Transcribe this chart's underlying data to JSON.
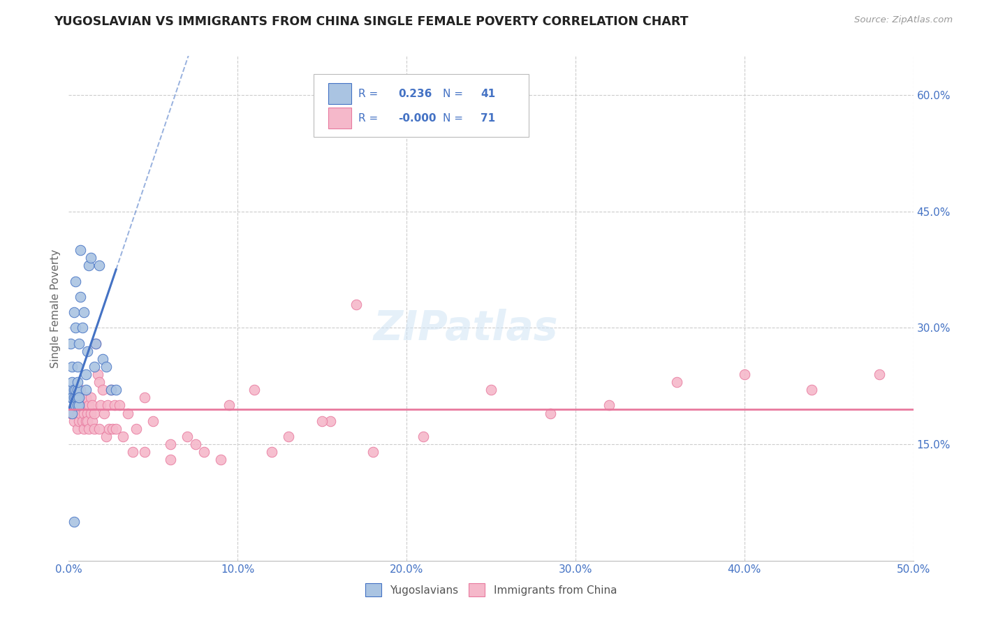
{
  "title": "YUGOSLAVIAN VS IMMIGRANTS FROM CHINA SINGLE FEMALE POVERTY CORRELATION CHART",
  "source": "Source: ZipAtlas.com",
  "ylabel": "Single Female Poverty",
  "xlim": [
    0.0,
    0.5
  ],
  "ylim": [
    0.0,
    0.65
  ],
  "xtick_vals": [
    0.0,
    0.1,
    0.2,
    0.3,
    0.4,
    0.5
  ],
  "xtick_labels": [
    "0.0%",
    "10.0%",
    "20.0%",
    "30.0%",
    "40.0%",
    "50.0%"
  ],
  "yticks_right": [
    0.15,
    0.3,
    0.45,
    0.6
  ],
  "ytick_labels_right": [
    "15.0%",
    "30.0%",
    "45.0%",
    "60.0%"
  ],
  "r_yugo": "0.236",
  "n_yugo": "41",
  "r_china": "-0.000",
  "n_china": "71",
  "legend_labels": [
    "Yugoslavians",
    "Immigrants from China"
  ],
  "color_yugo": "#aac4e2",
  "color_china": "#f5b8ca",
  "edge_color_yugo": "#4472C4",
  "edge_color_china": "#e87a9f",
  "line_color_yugo": "#4472C4",
  "line_color_china": "#e8799e",
  "watermark": "ZIPatlas",
  "yugo_x": [
    0.001,
    0.001,
    0.001,
    0.002,
    0.002,
    0.002,
    0.002,
    0.003,
    0.003,
    0.003,
    0.003,
    0.004,
    0.004,
    0.004,
    0.004,
    0.004,
    0.005,
    0.005,
    0.005,
    0.005,
    0.005,
    0.006,
    0.006,
    0.006,
    0.007,
    0.007,
    0.008,
    0.009,
    0.01,
    0.01,
    0.011,
    0.012,
    0.013,
    0.015,
    0.016,
    0.018,
    0.02,
    0.022,
    0.025,
    0.028,
    0.003
  ],
  "yugo_y": [
    0.21,
    0.22,
    0.28,
    0.19,
    0.21,
    0.23,
    0.25,
    0.2,
    0.22,
    0.21,
    0.32,
    0.2,
    0.21,
    0.22,
    0.3,
    0.36,
    0.2,
    0.21,
    0.22,
    0.23,
    0.25,
    0.2,
    0.21,
    0.28,
    0.34,
    0.4,
    0.3,
    0.32,
    0.24,
    0.22,
    0.27,
    0.38,
    0.39,
    0.25,
    0.28,
    0.38,
    0.26,
    0.25,
    0.22,
    0.22,
    0.05
  ],
  "china_x": [
    0.001,
    0.002,
    0.003,
    0.004,
    0.004,
    0.005,
    0.005,
    0.006,
    0.006,
    0.007,
    0.007,
    0.008,
    0.008,
    0.009,
    0.009,
    0.01,
    0.01,
    0.011,
    0.011,
    0.012,
    0.012,
    0.013,
    0.013,
    0.014,
    0.014,
    0.015,
    0.015,
    0.016,
    0.017,
    0.018,
    0.018,
    0.019,
    0.02,
    0.021,
    0.022,
    0.023,
    0.024,
    0.025,
    0.026,
    0.027,
    0.028,
    0.03,
    0.032,
    0.035,
    0.038,
    0.04,
    0.045,
    0.05,
    0.06,
    0.07,
    0.08,
    0.095,
    0.11,
    0.13,
    0.155,
    0.18,
    0.21,
    0.25,
    0.285,
    0.32,
    0.36,
    0.4,
    0.44,
    0.48,
    0.06,
    0.075,
    0.09,
    0.12,
    0.15,
    0.17,
    0.045
  ],
  "china_y": [
    0.19,
    0.19,
    0.18,
    0.2,
    0.22,
    0.17,
    0.19,
    0.18,
    0.2,
    0.19,
    0.22,
    0.18,
    0.2,
    0.17,
    0.19,
    0.18,
    0.21,
    0.19,
    0.18,
    0.2,
    0.17,
    0.19,
    0.21,
    0.18,
    0.2,
    0.17,
    0.19,
    0.28,
    0.24,
    0.23,
    0.17,
    0.2,
    0.22,
    0.19,
    0.16,
    0.2,
    0.17,
    0.22,
    0.17,
    0.2,
    0.17,
    0.2,
    0.16,
    0.19,
    0.14,
    0.17,
    0.14,
    0.18,
    0.15,
    0.16,
    0.14,
    0.2,
    0.22,
    0.16,
    0.18,
    0.14,
    0.16,
    0.22,
    0.19,
    0.2,
    0.23,
    0.24,
    0.22,
    0.24,
    0.13,
    0.15,
    0.13,
    0.14,
    0.18,
    0.33,
    0.21
  ],
  "yugo_line_x0": 0.0,
  "yugo_line_x1": 0.028,
  "yugo_line_solid_end": 0.028,
  "yugo_line_y0": 0.195,
  "yugo_line_y1": 0.375,
  "china_line_y": 0.195
}
